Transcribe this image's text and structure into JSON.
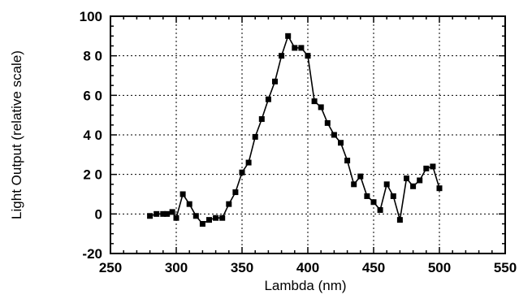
{
  "chart_data": {
    "type": "line",
    "title": "",
    "xlabel": "Lambda (nm)",
    "ylabel": "Light Output (relative scale)",
    "xlim": [
      250,
      550
    ],
    "ylim": [
      -20,
      100
    ],
    "x_ticks": [
      250,
      300,
      350,
      400,
      450,
      500,
      550
    ],
    "y_ticks": [
      -20,
      0,
      20,
      40,
      60,
      80,
      100
    ],
    "x_tick_labels": [
      "250",
      "300",
      "350",
      "400",
      "450",
      "500",
      "550"
    ],
    "y_tick_labels": [
      "-20",
      "0",
      "2 0",
      "4 0",
      "6 0",
      "8 0",
      "100"
    ],
    "grid": true,
    "legend": "none",
    "series": [
      {
        "marker": "square",
        "color": "#000000",
        "x": [
          280,
          285,
          290,
          293,
          297,
          300,
          305,
          310,
          315,
          320,
          325,
          330,
          335,
          340,
          345,
          350,
          355,
          360,
          365,
          370,
          375,
          380,
          385,
          390,
          395,
          400,
          405,
          410,
          415,
          420,
          425,
          430,
          435,
          440,
          445,
          450,
          455,
          460,
          465,
          470,
          475,
          480,
          485,
          490,
          495,
          500
        ],
        "y": [
          -1,
          0,
          0,
          0,
          1,
          -2,
          10,
          5,
          -1,
          -5,
          -3,
          -2,
          -2,
          5,
          11,
          21,
          26,
          39,
          48,
          58,
          67,
          80,
          90,
          84,
          84,
          80,
          57,
          54,
          46,
          40,
          36,
          27,
          15,
          19,
          9,
          6,
          2,
          15,
          9,
          -3,
          18,
          14,
          17,
          23,
          24,
          13
        ]
      }
    ]
  }
}
